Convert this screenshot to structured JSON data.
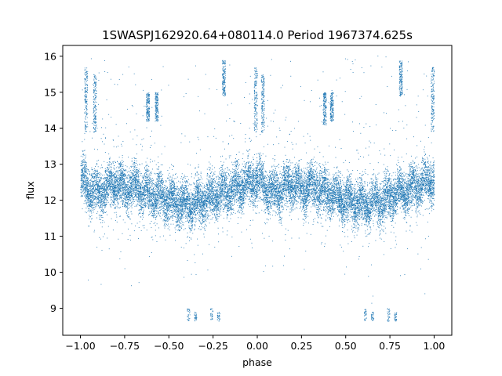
{
  "chart_data": {
    "type": "scatter",
    "title": "1SWASPJ162920.64+080114.0 Period 1967374.625s",
    "xlabel": "phase",
    "ylabel": "flux",
    "xlim": [
      -1.1,
      1.1
    ],
    "ylim": [
      8.25,
      16.3
    ],
    "xticks": [
      -1.0,
      -0.75,
      -0.5,
      -0.25,
      0.0,
      0.25,
      0.5,
      0.75,
      1.0
    ],
    "xtick_labels": [
      "−1.00",
      "−0.75",
      "−0.50",
      "−0.25",
      "0.00",
      "0.25",
      "0.50",
      "0.75",
      "1.00"
    ],
    "yticks": [
      9,
      10,
      11,
      12,
      13,
      14,
      15,
      16
    ],
    "ytick_labels": [
      "9",
      "10",
      "11",
      "12",
      "13",
      "14",
      "15",
      "16"
    ],
    "grid": false,
    "marker_color": "#1f77b4",
    "point_count_approx": 30000,
    "series": [
      {
        "description_points": [
          {
            "x": -1.0,
            "y": 12.6
          },
          {
            "x": -0.95,
            "y": 12.3
          },
          {
            "x": -0.9,
            "y": 12.2
          },
          {
            "x": -0.8,
            "y": 12.5
          },
          {
            "x": -0.75,
            "y": 12.3
          },
          {
            "x": -0.7,
            "y": 12.4
          },
          {
            "x": -0.6,
            "y": 12.2
          },
          {
            "x": -0.5,
            "y": 12.0
          },
          {
            "x": -0.4,
            "y": 11.9
          },
          {
            "x": -0.3,
            "y": 12.0
          },
          {
            "x": -0.2,
            "y": 12.2
          },
          {
            "x": -0.1,
            "y": 12.4
          },
          {
            "x": 0.0,
            "y": 12.6
          },
          {
            "x": 0.05,
            "y": 12.3
          },
          {
            "x": 0.1,
            "y": 12.2
          },
          {
            "x": 0.2,
            "y": 12.5
          },
          {
            "x": 0.25,
            "y": 12.3
          },
          {
            "x": 0.3,
            "y": 12.4
          },
          {
            "x": 0.4,
            "y": 12.2
          },
          {
            "x": 0.5,
            "y": 12.0
          },
          {
            "x": 0.6,
            "y": 11.9
          },
          {
            "x": 0.7,
            "y": 12.0
          },
          {
            "x": 0.8,
            "y": 12.2
          },
          {
            "x": 0.9,
            "y": 12.4
          },
          {
            "x": 1.0,
            "y": 12.6
          }
        ]
      }
    ],
    "flare_bands": [
      {
        "x": -0.97,
        "ymin": 13.9,
        "ymax": 15.7
      },
      {
        "x": -0.92,
        "ymin": 13.9,
        "ymax": 15.5
      },
      {
        "x": -0.62,
        "ymin": 14.2,
        "ymax": 15.0
      },
      {
        "x": -0.57,
        "ymin": 14.2,
        "ymax": 15.0
      },
      {
        "x": -0.19,
        "ymin": 14.9,
        "ymax": 15.9
      },
      {
        "x": -0.01,
        "ymin": 13.9,
        "ymax": 15.7
      },
      {
        "x": 0.03,
        "ymin": 13.9,
        "ymax": 15.5
      },
      {
        "x": 0.38,
        "ymin": 14.1,
        "ymax": 15.0
      },
      {
        "x": 0.42,
        "ymin": 14.2,
        "ymax": 15.0
      },
      {
        "x": 0.81,
        "ymin": 14.9,
        "ymax": 15.9
      },
      {
        "x": 0.99,
        "ymin": 13.9,
        "ymax": 15.7
      }
    ],
    "dip_bands": [
      {
        "x": -0.39,
        "ymin": 8.65,
        "ymax": 9.0
      },
      {
        "x": -0.35,
        "ymin": 8.65,
        "ymax": 8.9
      },
      {
        "x": -0.26,
        "ymin": 8.65,
        "ymax": 9.0
      },
      {
        "x": -0.22,
        "ymin": 8.65,
        "ymax": 8.9
      },
      {
        "x": 0.61,
        "ymin": 8.65,
        "ymax": 9.0
      },
      {
        "x": 0.65,
        "ymin": 8.65,
        "ymax": 8.9
      },
      {
        "x": 0.74,
        "ymin": 8.65,
        "ymax": 9.0
      },
      {
        "x": 0.78,
        "ymin": 8.65,
        "ymax": 8.9
      }
    ]
  }
}
